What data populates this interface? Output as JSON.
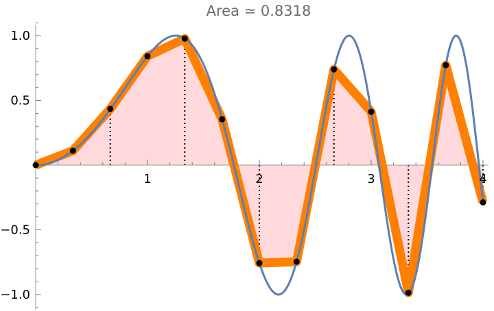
{
  "chart_data": {
    "type": "line",
    "title": "Area ≃ 0.8318",
    "xlabel": "",
    "ylabel": "",
    "xlim": [
      0,
      4.04
    ],
    "ylim": [
      -1.1,
      1.1
    ],
    "x_ticks": [
      {
        "value": 1,
        "label": "1"
      },
      {
        "value": 2,
        "label": "2"
      },
      {
        "value": 3,
        "label": "3"
      },
      {
        "value": 4,
        "label": "4"
      }
    ],
    "y_ticks": [
      {
        "value": 1.0,
        "label": "1.0"
      },
      {
        "value": 0.5,
        "label": "0.5"
      },
      {
        "value": -0.5,
        "label": "−0.5"
      },
      {
        "value": -1.0,
        "label": "−1.0"
      }
    ],
    "grid": false,
    "function": "sin(x^2)",
    "curve_samples": 400,
    "sample_points": [
      {
        "x": 0.0,
        "y": 0.0
      },
      {
        "x": 0.333,
        "y": 0.111
      },
      {
        "x": 0.667,
        "y": 0.434
      },
      {
        "x": 1.0,
        "y": 0.841
      },
      {
        "x": 1.333,
        "y": 0.977
      },
      {
        "x": 1.667,
        "y": 0.354
      },
      {
        "x": 2.0,
        "y": -0.757
      },
      {
        "x": 2.333,
        "y": -0.746
      },
      {
        "x": 2.667,
        "y": 0.739
      },
      {
        "x": 3.0,
        "y": 0.412
      },
      {
        "x": 3.333,
        "y": -0.986
      },
      {
        "x": 3.667,
        "y": 0.772
      },
      {
        "x": 4.0,
        "y": -0.288
      }
    ],
    "vertical_markers": [
      {
        "x": 0.667,
        "y": 0.434
      },
      {
        "x": 1.333,
        "y": 0.977
      },
      {
        "x": 2.0,
        "y": -0.757
      },
      {
        "x": 2.667,
        "y": 0.739
      },
      {
        "x": 3.333,
        "y": -0.986
      },
      {
        "x": 4.0,
        "y": -0.288
      }
    ],
    "colors": {
      "function_line": "#5a7fb5",
      "interpolant_line": "#ff8000",
      "area_fill": "#ffd9dc",
      "points": "#000000",
      "axes": "#000000",
      "title": "#6b6b6b"
    }
  }
}
